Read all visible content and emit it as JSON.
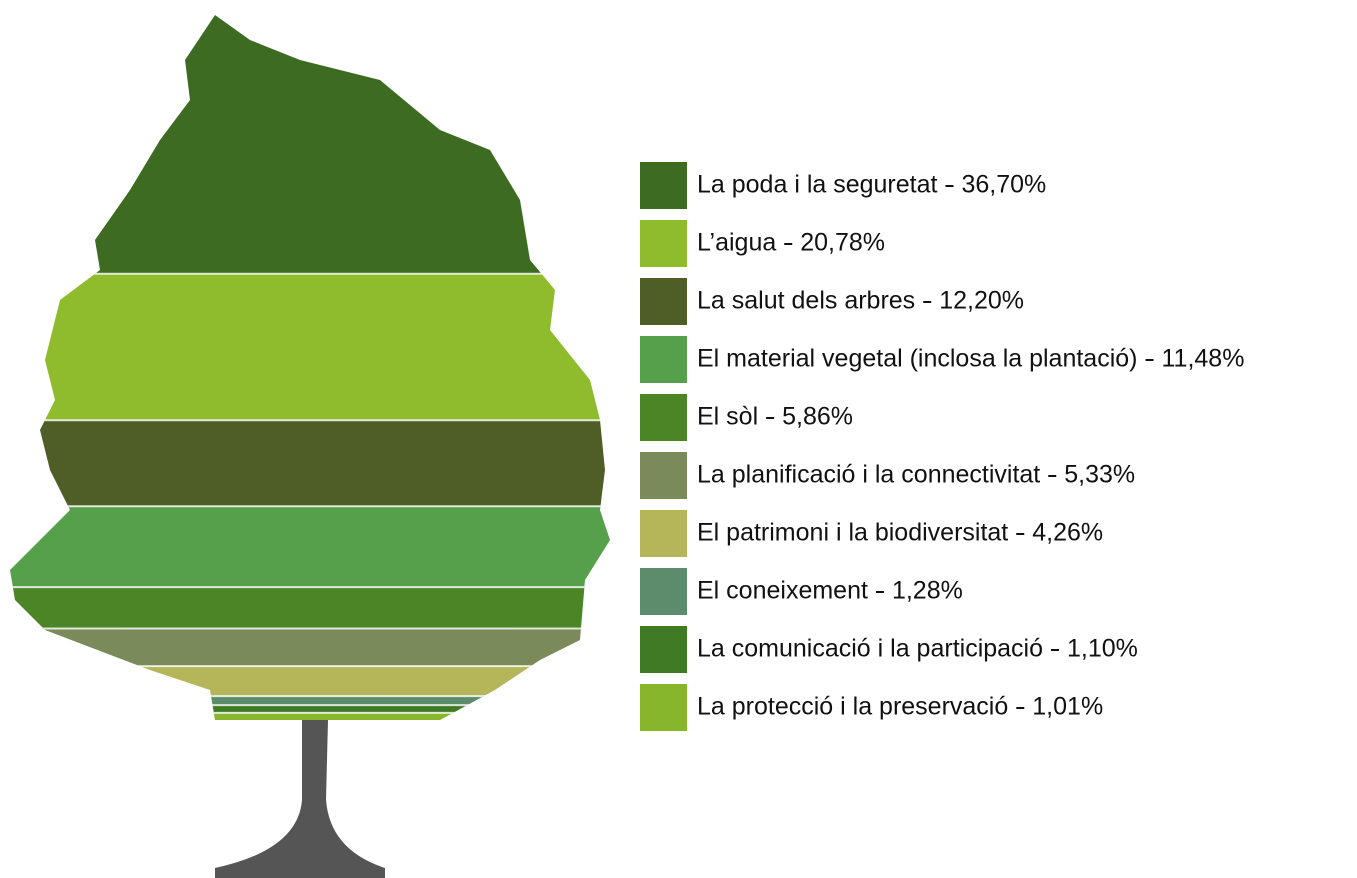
{
  "chart_data": {
    "type": "tree",
    "categories": [
      "La poda i la seguretat",
      "L’aigua",
      "La salut dels arbres",
      "El material vegetal (inclosa la plantació)",
      "El sòl",
      "La planificació i la connectivitat",
      "El patrimoni i la biodiversitat",
      "El coneixement",
      "La comunicació i la participació",
      "La protecció i la preservació"
    ],
    "values": [
      36.7,
      20.78,
      12.2,
      11.48,
      5.86,
      5.33,
      4.26,
      1.28,
      1.1,
      1.01
    ],
    "value_labels": [
      "36,70%",
      "20,78%",
      "12,20%",
      "11,48%",
      "5,86%",
      "5,33%",
      "4,26%",
      "1,28%",
      "1,10%",
      "1,01%"
    ],
    "colors": [
      "#3d6b22",
      "#8fbc2d",
      "#4e5e26",
      "#56a04c",
      "#4c8526",
      "#7b8a5a",
      "#b5b55a",
      "#5c8c6c",
      "#3f7a25",
      "#87b52c"
    ]
  }
}
